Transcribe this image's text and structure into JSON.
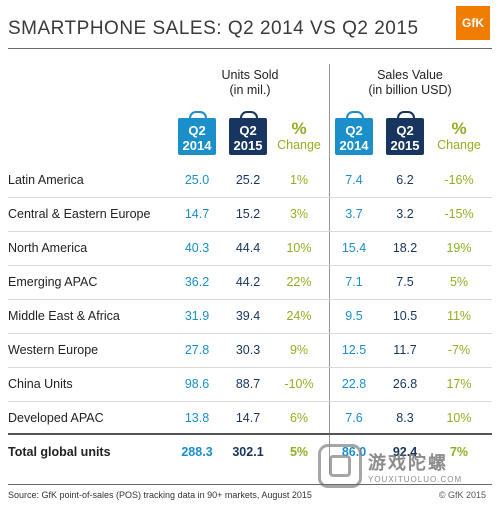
{
  "title": "SMARTPHONE SALES: Q2 2014 VS Q2 2015",
  "logo_text": "GfK",
  "groups": {
    "units": {
      "line1": "Units Sold",
      "line2": "(in mil.)"
    },
    "value": {
      "line1": "Sales Value",
      "line2": "(in billion USD)"
    }
  },
  "columns": {
    "q2_2014": {
      "line1": "Q2",
      "line2": "2014"
    },
    "q2_2015": {
      "line1": "Q2",
      "line2": "2015"
    },
    "pct": {
      "symbol": "%",
      "label": "Change"
    }
  },
  "colors": {
    "q2_2014": "#1a8fc9",
    "q2_2015": "#17355e",
    "change": "#8fb021",
    "logo": "#f07d00"
  },
  "chart_data": {
    "type": "table",
    "title": "SMARTPHONE SALES: Q2 2014 VS Q2 2015",
    "columns": [
      "Units Sold Q2 2014",
      "Units Sold Q2 2015",
      "Units Sold % Change",
      "Sales Value Q2 2014",
      "Sales Value Q2 2015",
      "Sales Value % Change"
    ],
    "rows": [
      {
        "region": "Latin America",
        "units_2014": "25.0",
        "units_2015": "25.2",
        "units_change": "1%",
        "value_2014": "7.4",
        "value_2015": "6.2",
        "value_change": "-16%"
      },
      {
        "region": "Central & Eastern Europe",
        "units_2014": "14.7",
        "units_2015": "15.2",
        "units_change": "3%",
        "value_2014": "3.7",
        "value_2015": "3.2",
        "value_change": "-15%"
      },
      {
        "region": "North America",
        "units_2014": "40.3",
        "units_2015": "44.4",
        "units_change": "10%",
        "value_2014": "15.4",
        "value_2015": "18.2",
        "value_change": "19%"
      },
      {
        "region": "Emerging APAC",
        "units_2014": "36.2",
        "units_2015": "44.2",
        "units_change": "22%",
        "value_2014": "7.1",
        "value_2015": "7.5",
        "value_change": "5%"
      },
      {
        "region": "Middle East & Africa",
        "units_2014": "31.9",
        "units_2015": "39.4",
        "units_change": "24%",
        "value_2014": "9.5",
        "value_2015": "10.5",
        "value_change": "11%"
      },
      {
        "region": "Western Europe",
        "units_2014": "27.8",
        "units_2015": "30.3",
        "units_change": "9%",
        "value_2014": "12.5",
        "value_2015": "11.7",
        "value_change": "-7%"
      },
      {
        "region": "China Units",
        "units_2014": "98.6",
        "units_2015": "88.7",
        "units_change": "-10%",
        "value_2014": "22.8",
        "value_2015": "26.8",
        "value_change": "17%"
      },
      {
        "region": "Developed APAC",
        "units_2014": "13.8",
        "units_2015": "14.7",
        "units_change": "6%",
        "value_2014": "7.6",
        "value_2015": "8.3",
        "value_change": "10%"
      }
    ],
    "total": {
      "region": "Total global units",
      "units_2014": "288.3",
      "units_2015": "302.1",
      "units_change": "5%",
      "value_2014": "86.0",
      "value_2015": "92.4",
      "value_change": "7%"
    }
  },
  "footer": {
    "source": "Source: GfK point-of-sales (POS) tracking data in 90+ markets, August 2015",
    "copyright": "© GfK 2015"
  },
  "watermark": {
    "cn": "游戏陀螺",
    "en": "YOUXITUOLUO.COM"
  }
}
